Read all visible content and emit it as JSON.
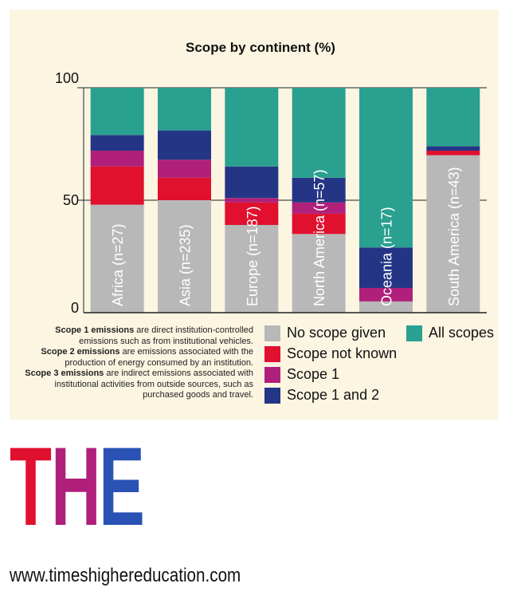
{
  "colors": {
    "panel": "#fbf5e2",
    "no_scope": "#b8b8b8",
    "scope_not_known": "#e0102e",
    "scope_1": "#b0207a",
    "scope_1_and_2": "#243585",
    "all_scopes": "#2aa090",
    "logo_t": "#e0102e",
    "logo_h": "#b0207a",
    "logo_e": "#2a52b5"
  },
  "chart_data": {
    "type": "bar",
    "stacked": true,
    "title": "Scope by continent (%)",
    "ylim": [
      0,
      100
    ],
    "yticks": [
      "0",
      "50",
      "100"
    ],
    "ytick_values": [
      0,
      50,
      100
    ],
    "grid": true,
    "categories": [
      "Africa (n=27)",
      "Asia (n=235)",
      "Europe (n=187)",
      "North America (n=57)",
      "Oceania (n=17)",
      "South America (n=43)"
    ],
    "series": [
      {
        "name": "No scope given",
        "color_key": "no_scope",
        "values": [
          48,
          50,
          39,
          35,
          5,
          70
        ]
      },
      {
        "name": "Scope not known",
        "color_key": "scope_not_known",
        "values": [
          17,
          10,
          10,
          9,
          0,
          2
        ]
      },
      {
        "name": "Scope 1",
        "color_key": "scope_1",
        "values": [
          7,
          8,
          2,
          5,
          6,
          0
        ]
      },
      {
        "name": "Scope 1 and 2",
        "color_key": "scope_1_and_2",
        "values": [
          7,
          13,
          14,
          11,
          18,
          2
        ]
      },
      {
        "name": "All scopes",
        "color_key": "all_scopes",
        "values": [
          21,
          19,
          35,
          40,
          71,
          26
        ]
      }
    ]
  },
  "legend": {
    "no_scope": "No scope given",
    "all_scopes": "All scopes",
    "scope_not_known": "Scope not known",
    "scope_1": "Scope 1",
    "scope_1_and_2": "Scope 1 and 2"
  },
  "notes": {
    "s1_bold": "Scope 1 emissions",
    "s1_text": " are direct institution-controlled emissions such as from institutional vehicles.",
    "s2_bold": "Scope 2 emissions",
    "s2_text": " are emissions associated with the production of energy consumed by an institution.",
    "s3_bold": "Scope 3 emissions",
    "s3_text": " are indirect emissions associated with institutional activities from outside sources, such as purchased goods and travel."
  },
  "logo": {
    "t": "T",
    "h": "H",
    "e": "E"
  },
  "footer": {
    "url": "www.timeshighereducation.com"
  }
}
